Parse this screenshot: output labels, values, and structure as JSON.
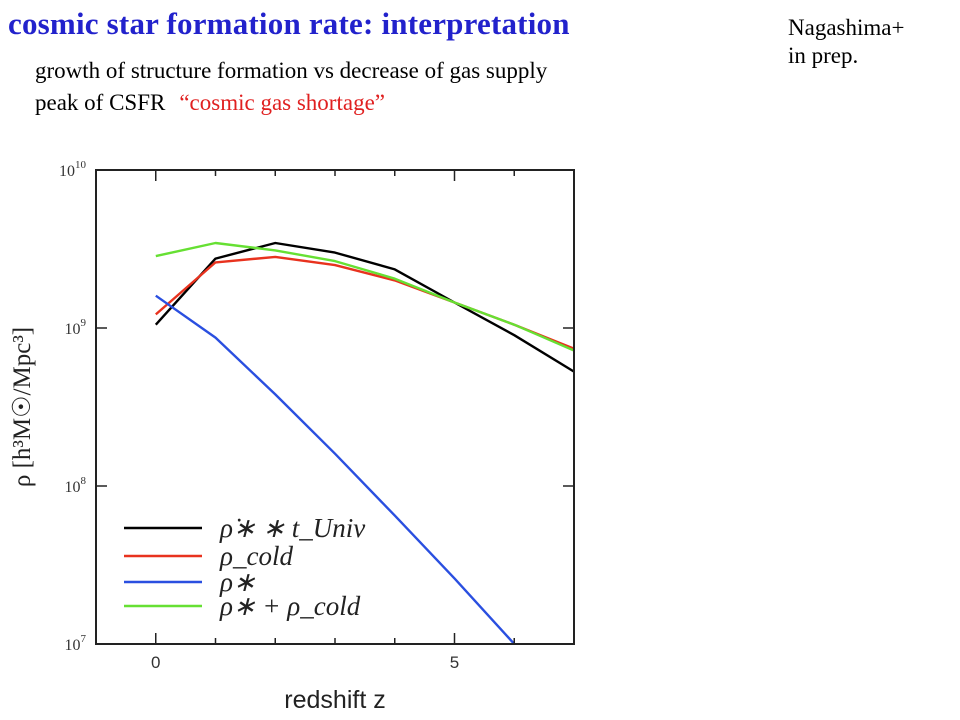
{
  "header": {
    "title": "cosmic star formation rate: interpretation",
    "line1": "growth of structure formation vs decrease of gas supply",
    "line2_prefix": "peak of CSFR",
    "line2_quote": "“cosmic gas shortage”",
    "credit_line1": "Nagashima+",
    "credit_line2": "in prep."
  },
  "chart_data": {
    "type": "line",
    "xlabel": "redshift z",
    "ylabel": "ρ [h³M☉/Mpc³]",
    "xlim": [
      -1,
      7
    ],
    "ylim": [
      10000000.0,
      10000000000.0
    ],
    "y_scale": "log",
    "x_ticks": [
      0,
      5
    ],
    "y_ticks": [
      10000000.0,
      100000000.0,
      1000000000.0,
      10000000000.0
    ],
    "grid": false,
    "legend_position": "bottom-left",
    "series": [
      {
        "name": "ρ̇∗ ∗ t_Univ",
        "color": "#000000",
        "x": [
          0,
          1,
          2,
          3,
          4,
          5,
          6,
          7
        ],
        "y": [
          1050000000.0,
          2750000000.0,
          3450000000.0,
          3000000000.0,
          2350000000.0,
          1450000000.0,
          900000000.0,
          530000000.0
        ]
      },
      {
        "name": "ρ_cold",
        "color": "#e8321e",
        "x": [
          0,
          1,
          2,
          3,
          4,
          5,
          6,
          7
        ],
        "y": [
          1220000000.0,
          2600000000.0,
          2820000000.0,
          2500000000.0,
          2000000000.0,
          1450000000.0,
          1050000000.0,
          740000000.0
        ]
      },
      {
        "name": "ρ∗",
        "color": "#2a4fe0",
        "x": [
          0,
          1,
          2,
          3,
          4,
          5,
          6
        ],
        "y": [
          1600000000.0,
          870000000.0,
          380000000.0,
          160000000.0,
          65000000.0,
          26000000.0,
          10000000.0
        ]
      },
      {
        "name": "ρ∗ + ρ_cold",
        "color": "#66e033",
        "x": [
          0,
          1,
          2,
          3,
          4,
          5,
          6,
          7
        ],
        "y": [
          2850000000.0,
          3450000000.0,
          3100000000.0,
          2650000000.0,
          2050000000.0,
          1450000000.0,
          1050000000.0,
          720000000.0
        ]
      }
    ]
  }
}
